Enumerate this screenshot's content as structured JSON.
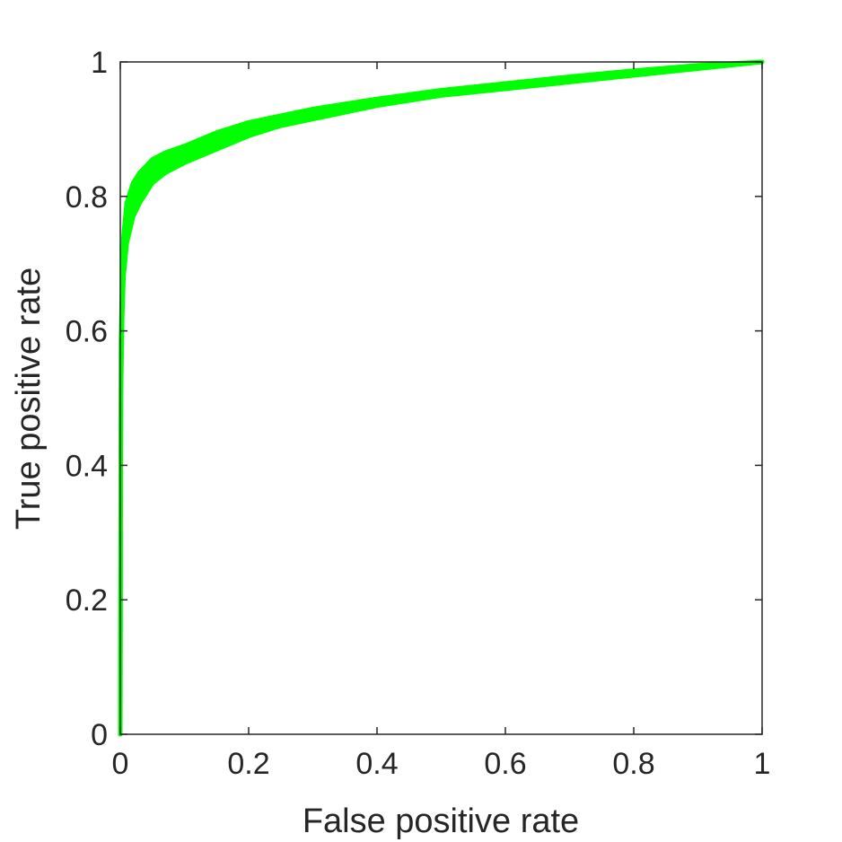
{
  "chart_data": {
    "type": "area",
    "title": "",
    "xlabel": "False positive rate",
    "ylabel": "True positive rate",
    "xlim": [
      0,
      1
    ],
    "ylim": [
      0,
      1
    ],
    "x_ticks": [
      0,
      0.2,
      0.4,
      0.6,
      0.8,
      1
    ],
    "x_tick_labels": [
      "0",
      "0.2",
      "0.4",
      "0.6",
      "0.8",
      "1"
    ],
    "y_ticks": [
      0,
      0.2,
      0.4,
      0.6,
      0.8,
      1
    ],
    "y_tick_labels": [
      "0",
      "0.2",
      "0.4",
      "0.6",
      "0.8",
      "1"
    ],
    "grid": false,
    "legend": "none",
    "series_color": "#00ff00",
    "axis_color": "#262626",
    "x": [
      0,
      0.001,
      0.003,
      0.005,
      0.01,
      0.02,
      0.03,
      0.05,
      0.07,
      0.1,
      0.15,
      0.2,
      0.25,
      0.3,
      0.4,
      0.5,
      0.6,
      0.7,
      0.8,
      0.9,
      1.0
    ],
    "series": [
      {
        "values": [
          0,
          0.5,
          0.62,
          0.68,
          0.73,
          0.77,
          0.79,
          0.82,
          0.835,
          0.85,
          0.87,
          0.89,
          0.905,
          0.915,
          0.935,
          0.95,
          0.96,
          0.97,
          0.98,
          0.99,
          1.0
        ]
      },
      {
        "values": [
          0,
          0.58,
          0.68,
          0.74,
          0.79,
          0.82,
          0.835,
          0.855,
          0.865,
          0.875,
          0.895,
          0.91,
          0.92,
          0.93,
          0.945,
          0.958,
          0.968,
          0.978,
          0.987,
          0.995,
          1.0
        ]
      }
    ]
  }
}
